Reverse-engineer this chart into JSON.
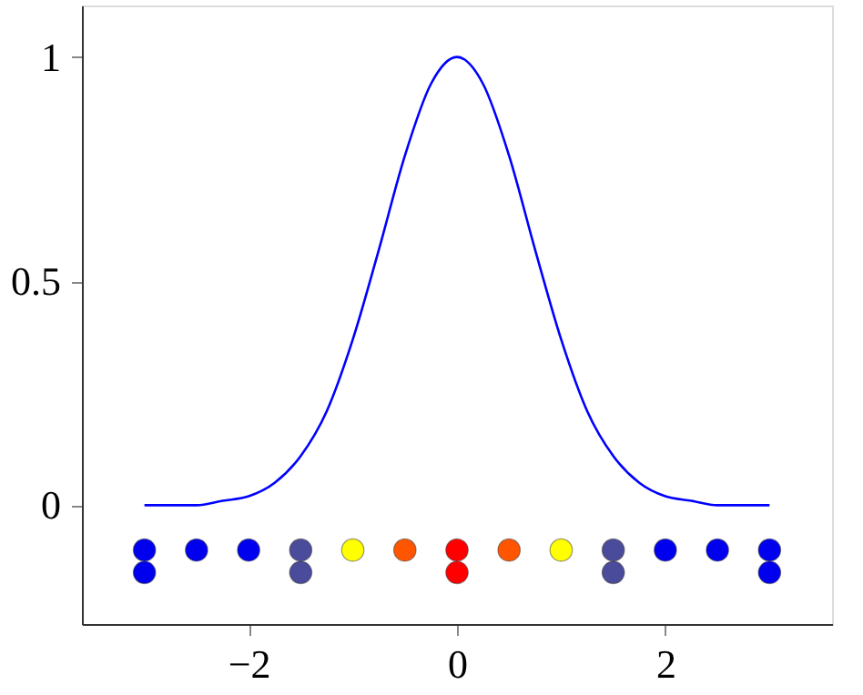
{
  "chart_data": {
    "type": "line",
    "xlim": [
      -3.6,
      3.6
    ],
    "ylim": [
      -0.265,
      1.115
    ],
    "xticks": [
      -2,
      0,
      2
    ],
    "yticks": [
      0,
      0.5,
      1
    ],
    "grid": false,
    "legend": false,
    "marker": "none",
    "series": [
      {
        "color": "#0000ff",
        "x": [
          -3,
          -2.75,
          -2.5,
          -2.25,
          -2,
          -1.75,
          -1.5,
          -1.25,
          -1,
          -0.75,
          -0.5,
          -0.25,
          0,
          0.25,
          0.5,
          0.75,
          1,
          1.25,
          1.5,
          1.75,
          2,
          2.25,
          2.5,
          2.75,
          3
        ],
        "values": [
          0.0,
          0.0,
          0.0,
          0.01,
          0.02,
          0.05,
          0.11,
          0.21,
          0.37,
          0.57,
          0.78,
          0.94,
          1.0,
          0.94,
          0.78,
          0.57,
          0.37,
          0.21,
          0.11,
          0.05,
          0.02,
          0.01,
          0.0,
          0.0,
          0.0
        ]
      },
      {
        "type": "scatter",
        "marker": "circle",
        "x": [
          -3,
          -2.5,
          -2,
          -1.5,
          -1,
          -0.5,
          0,
          0.5,
          1,
          1.5,
          2,
          2.5,
          3
        ],
        "values": [
          -0.1,
          -0.1,
          -0.1,
          -0.1,
          -0.1,
          -0.1,
          -0.1,
          -0.1,
          -0.1,
          -0.1,
          -0.1,
          -0.1,
          -0.1
        ],
        "colors": [
          "#0000ee",
          "#0000ee",
          "#0000ee",
          "#4b4b9b",
          "#ffff00",
          "#ff5500",
          "#ff0000",
          "#ff5500",
          "#ffff00",
          "#4b4b9b",
          "#0000ee",
          "#0000ee",
          "#0000ee"
        ]
      },
      {
        "type": "scatter",
        "marker": "circle",
        "x": [
          -3,
          -1.5,
          0,
          1.5,
          3
        ],
        "values": [
          -0.15,
          -0.15,
          -0.15,
          -0.15,
          -0.15
        ],
        "colors": [
          "#0000ee",
          "#4b4b9b",
          "#ff0000",
          "#4b4b9b",
          "#0000ee"
        ]
      }
    ]
  }
}
